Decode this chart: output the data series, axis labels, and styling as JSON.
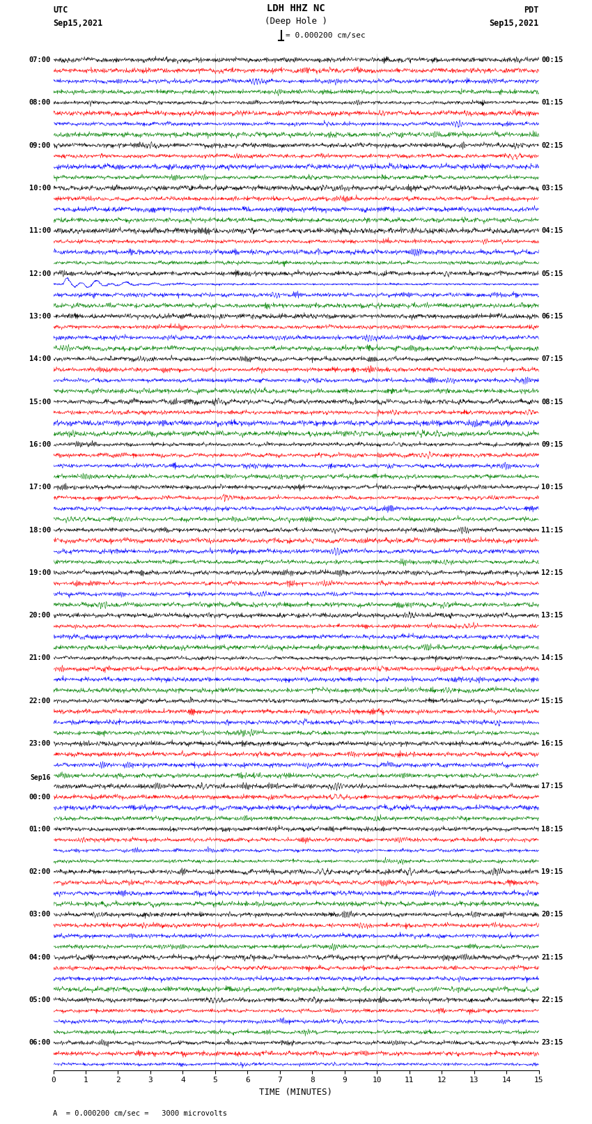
{
  "title_line1": "LDH HHZ NC",
  "title_line2": "(Deep Hole )",
  "scale_label": "= 0.000200 cm/sec",
  "bottom_label": "A  = 0.000200 cm/sec =   3000 microvolts",
  "utc_label": "UTC",
  "utc_date": "Sep15,2021",
  "pdt_label": "PDT",
  "pdt_date": "Sep15,2021",
  "xlabel": "TIME (MINUTES)",
  "xlim": [
    0,
    15
  ],
  "xticks": [
    0,
    1,
    2,
    3,
    4,
    5,
    6,
    7,
    8,
    9,
    10,
    11,
    12,
    13,
    14,
    15
  ],
  "background_color": "#ffffff",
  "trace_colors": [
    "black",
    "red",
    "blue",
    "green"
  ],
  "n_rows": 95,
  "figsize": [
    8.5,
    16.13
  ],
  "dpi": 100,
  "left_times": [
    "07:00",
    "",
    "",
    "",
    "08:00",
    "",
    "",
    "",
    "09:00",
    "",
    "",
    "",
    "10:00",
    "",
    "",
    "",
    "11:00",
    "",
    "",
    "",
    "12:00",
    "",
    "",
    "",
    "13:00",
    "",
    "",
    "",
    "14:00",
    "",
    "",
    "",
    "15:00",
    "",
    "",
    "",
    "16:00",
    "",
    "",
    "",
    "17:00",
    "",
    "",
    "",
    "18:00",
    "",
    "",
    "",
    "19:00",
    "",
    "",
    "",
    "20:00",
    "",
    "",
    "",
    "21:00",
    "",
    "",
    "",
    "22:00",
    "",
    "",
    "",
    "23:00",
    "",
    "",
    "",
    "Sep16",
    "00:00",
    "",
    "",
    "01:00",
    "",
    "",
    "",
    "02:00",
    "",
    "",
    "",
    "03:00",
    "",
    "",
    "",
    "04:00",
    "",
    "",
    "",
    "05:00",
    "",
    "",
    "",
    "06:00",
    "",
    ""
  ],
  "right_times": [
    "00:15",
    "",
    "",
    "",
    "01:15",
    "",
    "",
    "",
    "02:15",
    "",
    "",
    "",
    "03:15",
    "",
    "",
    "",
    "04:15",
    "",
    "",
    "",
    "05:15",
    "",
    "",
    "",
    "06:15",
    "",
    "",
    "",
    "07:15",
    "",
    "",
    "",
    "08:15",
    "",
    "",
    "",
    "09:15",
    "",
    "",
    "",
    "10:15",
    "",
    "",
    "",
    "11:15",
    "",
    "",
    "",
    "12:15",
    "",
    "",
    "",
    "13:15",
    "",
    "",
    "",
    "14:15",
    "",
    "",
    "",
    "15:15",
    "",
    "",
    "",
    "16:15",
    "",
    "",
    "",
    "17:15",
    "",
    "",
    "",
    "18:15",
    "",
    "",
    "",
    "19:15",
    "",
    "",
    "",
    "20:15",
    "",
    "",
    "",
    "21:15",
    "",
    "",
    "",
    "22:15",
    "",
    "",
    "",
    "23:15",
    "",
    ""
  ],
  "earthquake_row": 21,
  "earthquake_amplitude": 0.42
}
